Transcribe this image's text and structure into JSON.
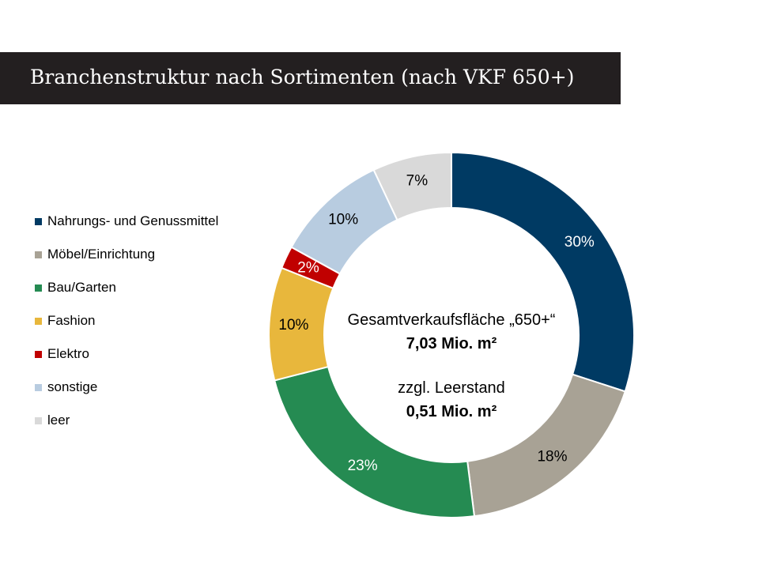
{
  "page": {
    "title": "Branchenstruktur nach Sortimenten (nach VKF 650+)"
  },
  "chart_data": {
    "type": "pie",
    "donut": true,
    "categories": [
      "Nahrungs- und Genussmittel",
      "Möbel/Einrichtung",
      "Bau/Garten",
      "Fashion",
      "Elektro",
      "sonstige",
      "leer"
    ],
    "values": [
      30,
      18,
      23,
      10,
      2,
      10,
      7
    ],
    "value_labels": [
      "30%",
      "18%",
      "23%",
      "10%",
      "2%",
      "10%",
      "7%"
    ],
    "colors": [
      "#003a63",
      "#a8a295",
      "#258b52",
      "#e8b73c",
      "#c00000",
      "#b8cce0",
      "#d9d9d9"
    ],
    "label_colors": [
      "#ffffff",
      "#000000",
      "#ffffff",
      "#000000",
      "#ffffff",
      "#000000",
      "#000000"
    ],
    "legend_position": "left",
    "center": {
      "line1": "Gesamtverkaufsfläche „650+“",
      "line2": "7,03 Mio. m²",
      "line3": "zzgl. Leerstand",
      "line4": "0,51 Mio. m²"
    }
  }
}
